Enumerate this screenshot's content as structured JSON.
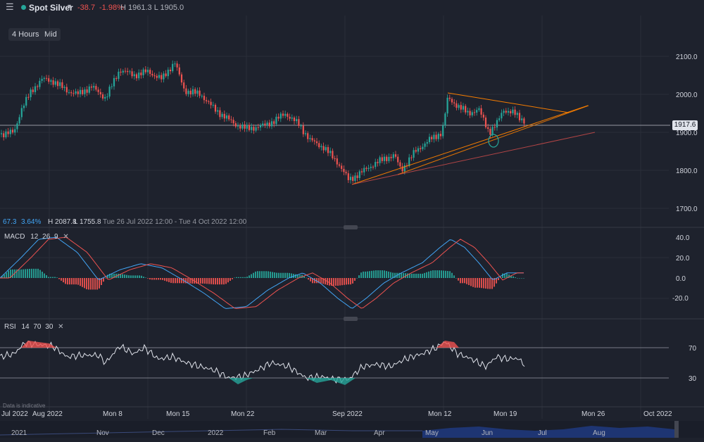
{
  "header": {
    "symbol": "Spot Silver",
    "change": "-38.7",
    "change_pct": "-1.98%",
    "high_low": "H 1961.3 L 1905.0"
  },
  "toolbar": {
    "timeframe": "4 Hours",
    "price_type": "Mid"
  },
  "info_line": {
    "v1": "67.3",
    "v2": "3.64%",
    "high": "H 2087.8",
    "low": "L 1755.8",
    "range": "Tue 26 Jul 2022 12:00 - Tue 4 Oct 2022 12:00"
  },
  "current_price": "1917.6",
  "price_axis": [
    "2100.0",
    "2000.0",
    "1900.0",
    "1800.0",
    "1700.0"
  ],
  "macd": {
    "label": "MACD",
    "params": [
      "12",
      "26",
      "9"
    ],
    "axis": [
      "40.0",
      "20.0",
      "0.0",
      "-20.0"
    ]
  },
  "rsi": {
    "label": "RSI",
    "params": [
      "14",
      "70",
      "30"
    ],
    "axis": [
      "70",
      "30"
    ]
  },
  "disclaimer": "Data is indicative",
  "time_axis": [
    "Jul 2022",
    "Aug 2022",
    "Mon 8",
    "Mon 15",
    "Mon 22",
    "Sep 2022",
    "Mon 12",
    "Mon 19",
    "Mon 26",
    "Oct 2022"
  ],
  "nav_axis": [
    "2021",
    "Nov",
    "Dec",
    "2022",
    "Feb",
    "Mar",
    "Apr",
    "May",
    "Jun",
    "Jul",
    "Aug"
  ],
  "colors": {
    "up": "#26a69a",
    "down": "#ef5350",
    "trend": "#f57c00",
    "bg": "#1e222d"
  }
}
